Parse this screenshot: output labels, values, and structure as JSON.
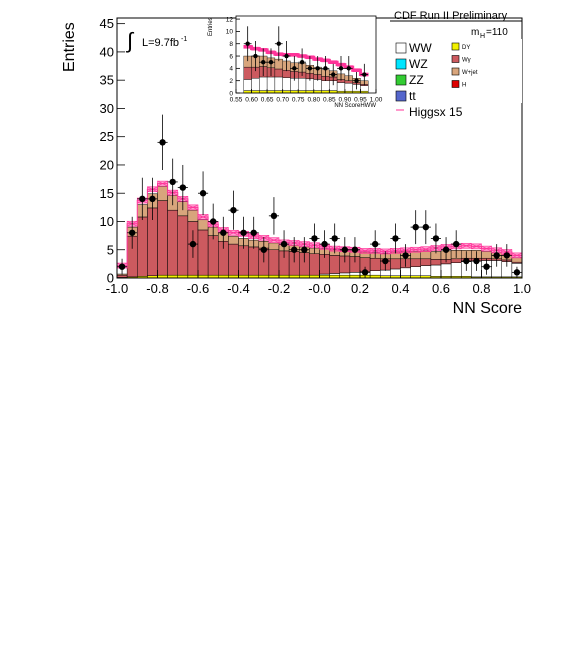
{
  "chart_data": [
    {
      "type": "bar",
      "stacked": true,
      "title": "CDF Run II Preliminary",
      "xlabel": "NN Score",
      "ylabel": "Entries",
      "xlim": [
        -1.0,
        1.0
      ],
      "ylim": [
        0,
        46
      ],
      "x_ticks": [
        "-1.0",
        "-0.8",
        "-0.6",
        "-0.4",
        "-0.2",
        "-0.0",
        "0.2",
        "0.4",
        "0.6",
        "0.8",
        "1.0"
      ],
      "y_ticks": [
        "0",
        "5",
        "10",
        "15",
        "20",
        "25",
        "30",
        "35",
        "40",
        "45"
      ],
      "grid": false,
      "luminosity_label": "L=9.7fb",
      "luminosity_sup": "-1",
      "mass_label_base": "m",
      "mass_label_sub": "H",
      "mass_label_value": "=110",
      "bin_edges": [
        -1.0,
        -0.95,
        -0.9,
        -0.85,
        -0.8,
        -0.75,
        -0.7,
        -0.65,
        -0.6,
        -0.55,
        -0.5,
        -0.45,
        -0.4,
        -0.35,
        -0.3,
        -0.25,
        -0.2,
        -0.15,
        -0.1,
        -0.05,
        0.0,
        0.05,
        0.1,
        0.15,
        0.2,
        0.25,
        0.3,
        0.35,
        0.4,
        0.45,
        0.5,
        0.55,
        0.6,
        0.65,
        0.7,
        0.75,
        0.8,
        0.85,
        0.9,
        0.95,
        1.0
      ],
      "series": [
        {
          "name": "DY",
          "color": "#f2f200",
          "values": [
            0.1,
            0.2,
            0.3,
            0.4,
            0.5,
            0.5,
            0.5,
            0.5,
            0.5,
            0.5,
            0.5,
            0.5,
            0.5,
            0.5,
            0.5,
            0.5,
            0.5,
            0.5,
            0.5,
            0.5,
            0.5,
            0.5,
            0.5,
            0.5,
            0.5,
            0.5,
            0.4,
            0.4,
            0.4,
            0.4,
            0.4,
            0.3,
            0.3,
            0.3,
            0.3,
            0.2,
            0.2,
            0.2,
            0.2,
            0.2
          ]
        },
        {
          "name": "WW",
          "color": "#ffffff",
          "values": [
            0,
            0,
            0,
            0,
            0,
            0,
            0,
            0,
            0,
            0,
            0,
            0,
            0,
            0,
            0,
            0,
            0,
            0,
            0,
            0,
            0.2,
            0.3,
            0.4,
            0.5,
            0.6,
            0.8,
            1.0,
            1.2,
            1.4,
            1.6,
            1.8,
            2.0,
            2.2,
            2.4,
            2.6,
            2.8,
            2.9,
            2.9,
            2.7,
            2.4
          ]
        },
        {
          "name": "Wγ",
          "color": "#cc5a5f",
          "values": [
            0.4,
            7.2,
            10.5,
            12.0,
            13.2,
            11.5,
            10.5,
            9.5,
            8.0,
            7.0,
            6.0,
            5.5,
            5.2,
            5.0,
            4.8,
            4.5,
            4.3,
            4.2,
            4.0,
            3.8,
            3.5,
            3.2,
            3.0,
            2.8,
            2.5,
            2.2,
            2.0,
            1.8,
            1.6,
            1.4,
            1.2,
            1.0,
            0.8,
            0.7,
            0.6,
            0.5,
            0.4,
            0.3,
            0.3,
            0.2
          ]
        },
        {
          "name": "W+jet",
          "color": "#d8a57c",
          "values": [
            0.2,
            1.6,
            2.2,
            2.5,
            2.5,
            2.6,
            2.5,
            2.0,
            1.8,
            1.5,
            1.5,
            1.4,
            1.3,
            1.2,
            1.2,
            1.2,
            1.1,
            1.1,
            1.0,
            1.0,
            1.0,
            1.0,
            1.0,
            1.0,
            1.0,
            1.0,
            1.0,
            1.2,
            1.3,
            1.3,
            1.4,
            1.4,
            1.5,
            1.5,
            1.4,
            1.4,
            1.2,
            1.1,
            1.0,
            0.8
          ]
        }
      ],
      "signal": {
        "name": "Higgsx 15",
        "color": "#ff3399",
        "values": [
          2.2,
          9.6,
          13.7,
          15.7,
          16.7,
          15.1,
          14.0,
          12.5,
          10.8,
          9.5,
          8.5,
          8.0,
          7.8,
          7.4,
          7.1,
          6.7,
          6.3,
          6.2,
          6.0,
          5.8,
          5.5,
          5.2,
          5.1,
          5.0,
          4.8,
          4.8,
          4.7,
          4.8,
          4.9,
          5.0,
          5.1,
          5.3,
          5.5,
          5.6,
          5.7,
          5.6,
          5.2,
          4.9,
          4.6,
          4.0
        ]
      },
      "data_points": {
        "x": [
          -0.975,
          -0.925,
          -0.875,
          -0.825,
          -0.775,
          -0.725,
          -0.675,
          -0.625,
          -0.575,
          -0.525,
          -0.475,
          -0.425,
          -0.375,
          -0.325,
          -0.275,
          -0.225,
          -0.175,
          -0.125,
          -0.075,
          -0.025,
          0.025,
          0.075,
          0.125,
          0.175,
          0.225,
          0.275,
          0.325,
          0.375,
          0.425,
          0.475,
          0.525,
          0.575,
          0.625,
          0.675,
          0.725,
          0.775,
          0.825,
          0.875,
          0.925,
          0.975
        ],
        "y": [
          2,
          8,
          14,
          14,
          24,
          17,
          16,
          6,
          15,
          10,
          8,
          12,
          8,
          8,
          5,
          11,
          6,
          5,
          5,
          7,
          6,
          7,
          5,
          5,
          1,
          6,
          3,
          7,
          4,
          9,
          9,
          7,
          5,
          6,
          3,
          3,
          2,
          4,
          4,
          1
        ]
      },
      "legend": [
        {
          "label": "WW",
          "color": "#ffffff"
        },
        {
          "label": "DY",
          "color": "#f2f200"
        },
        {
          "label": "WZ",
          "color": "#00e5ff"
        },
        {
          "label": "Wγ",
          "color": "#cc5a5f"
        },
        {
          "label": "ZZ",
          "color": "#33cc33"
        },
        {
          "label": "W+jet",
          "color": "#d8a57c"
        },
        {
          "label": "tt",
          "color": "#5566cc"
        },
        {
          "label": "H",
          "color": "#dd0000"
        },
        {
          "label": "Higgsx 15",
          "color": "#ff3399"
        }
      ],
      "legend_placement": "top-right"
    },
    {
      "type": "bar",
      "stacked": true,
      "xlabel": "NN ScoreHWW",
      "ylabel": "Entries",
      "xlim": [
        0.55,
        1.0
      ],
      "ylim": [
        0,
        12.5
      ],
      "x_ticks": [
        "0.55",
        "0.60",
        "0.65",
        "0.70",
        "0.75",
        "0.80",
        "0.85",
        "0.90",
        "0.95",
        "1.00"
      ],
      "y_ticks": [
        "0",
        "2",
        "4",
        "6",
        "8",
        "10",
        "12"
      ],
      "bin_edges": [
        0.575,
        0.6,
        0.625,
        0.65,
        0.675,
        0.7,
        0.725,
        0.75,
        0.775,
        0.8,
        0.825,
        0.85,
        0.875,
        0.9,
        0.925,
        0.95,
        0.975
      ],
      "series": [
        {
          "name": "DY",
          "color": "#f2f200",
          "values": [
            0.4,
            0.4,
            0.4,
            0.4,
            0.4,
            0.4,
            0.4,
            0.4,
            0.4,
            0.4,
            0.4,
            0.4,
            0.3,
            0.3,
            0.3,
            0.3
          ]
        },
        {
          "name": "WW",
          "color": "#ffffff",
          "values": [
            1.8,
            2.0,
            2.2,
            2.2,
            2.2,
            2.1,
            2.0,
            2.0,
            1.9,
            1.8,
            1.6,
            1.6,
            1.4,
            1.3,
            1.1,
            0.9
          ]
        },
        {
          "name": "Wγ",
          "color": "#cc5a5f",
          "values": [
            2.0,
            1.8,
            1.7,
            1.5,
            1.3,
            1.2,
            1.1,
            1.0,
            0.9,
            0.8,
            0.7,
            0.6,
            0.5,
            0.4,
            0.3,
            0.2
          ]
        },
        {
          "name": "W+jet",
          "color": "#d8a57c",
          "values": [
            1.8,
            1.8,
            1.7,
            1.6,
            1.6,
            1.5,
            1.4,
            1.4,
            1.3,
            1.2,
            1.1,
            1.0,
            0.9,
            0.8,
            0.7,
            0.6
          ]
        }
      ],
      "signal": {
        "name": "Higgsx 15",
        "color": "#ff3399",
        "values": [
          7.5,
          7.2,
          7.0,
          6.6,
          6.3,
          6.2,
          6.2,
          6.0,
          5.8,
          5.5,
          5.3,
          5.0,
          4.6,
          4.2,
          3.7,
          3.0
        ]
      },
      "data_points": {
        "x": [
          0.5875,
          0.6125,
          0.6375,
          0.6625,
          0.6875,
          0.7125,
          0.7375,
          0.7625,
          0.7875,
          0.8125,
          0.8375,
          0.8625,
          0.8875,
          0.9125,
          0.9375,
          0.9625
        ],
        "y": [
          8,
          6,
          5,
          5,
          8,
          6,
          4,
          5,
          4,
          4,
          4,
          3,
          4,
          4,
          2,
          3
        ]
      }
    }
  ]
}
